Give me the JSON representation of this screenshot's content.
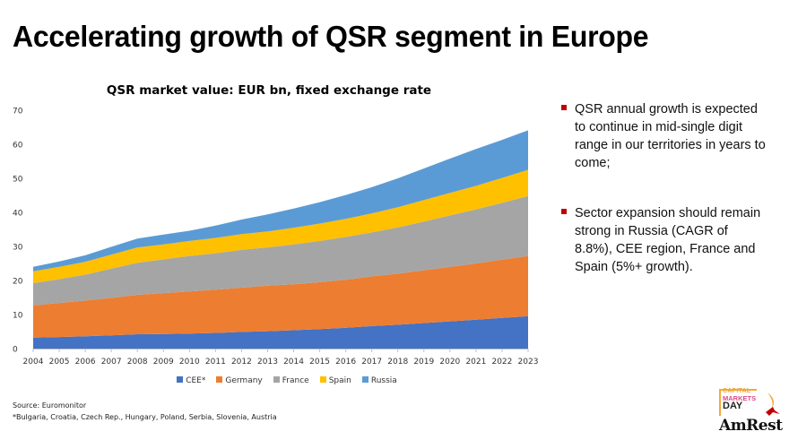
{
  "page": {
    "title": "Accelerating growth of QSR segment in Europe"
  },
  "chart_data": {
    "type": "area",
    "stacked": true,
    "title": "QSR market value: EUR bn, fixed exchange rate",
    "xlabel": "",
    "ylabel": "",
    "ylim": [
      0,
      70
    ],
    "yticks": [
      0,
      10,
      20,
      30,
      40,
      50,
      60,
      70
    ],
    "grid": false,
    "legend_position": "bottom",
    "x": [
      "2004",
      "2005",
      "2006",
      "2007",
      "2008",
      "2009",
      "2010",
      "2011",
      "2012",
      "2013",
      "2014",
      "2015",
      "2016",
      "2017",
      "2018",
      "2019",
      "2020",
      "2021",
      "2022",
      "2023"
    ],
    "series": [
      {
        "name": "CEE*",
        "color": "#4472c4",
        "values": [
          3.2,
          3.4,
          3.6,
          3.9,
          4.2,
          4.3,
          4.4,
          4.6,
          4.9,
          5.1,
          5.4,
          5.7,
          6.1,
          6.6,
          7.0,
          7.5,
          8.0,
          8.5,
          9.0,
          9.5
        ]
      },
      {
        "name": "Germany",
        "color": "#ed7d31",
        "values": [
          9.5,
          10.0,
          10.5,
          11.0,
          11.6,
          12.0,
          12.4,
          12.7,
          13.0,
          13.4,
          13.5,
          13.8,
          14.1,
          14.6,
          15.0,
          15.5,
          16.0,
          16.5,
          17.1,
          17.7
        ]
      },
      {
        "name": "France",
        "color": "#a5a5a5",
        "values": [
          6.5,
          7.0,
          7.6,
          8.6,
          9.4,
          9.9,
          10.4,
          10.7,
          11.1,
          11.2,
          11.7,
          12.1,
          12.6,
          12.9,
          13.6,
          14.3,
          15.1,
          15.9,
          16.7,
          17.6
        ]
      },
      {
        "name": "Spain",
        "color": "#ffc000",
        "values": [
          3.5,
          3.6,
          3.8,
          4.1,
          4.5,
          4.4,
          4.4,
          4.5,
          4.6,
          4.7,
          4.9,
          5.1,
          5.3,
          5.6,
          5.9,
          6.3,
          6.6,
          6.9,
          7.3,
          7.7
        ]
      },
      {
        "name": "Russia",
        "color": "#5b9bd5",
        "values": [
          1.3,
          1.6,
          1.9,
          2.3,
          2.6,
          2.9,
          3.0,
          3.6,
          4.3,
          5.0,
          5.6,
          6.3,
          7.0,
          7.7,
          8.5,
          9.3,
          10.1,
          10.8,
          11.2,
          11.6
        ]
      }
    ]
  },
  "footnotes": {
    "source": "Source: Euromonitor",
    "cee_definition": "*Bulgaria, Croatia, Czech Rep., Hungary, Poland, Serbia, Slovenia, Austria"
  },
  "bullets": [
    {
      "text": "QSR annual growth is expected to continue in mid-single digit range in our territories in years to come;"
    },
    {
      "text": "Sector expansion should remain strong in Russia (CAGR of 8.8%), CEE region, France and Spain (5%+ growth)."
    }
  ],
  "accent_color": "#c00000",
  "logo": {
    "event_line1": "CAPITAL",
    "event_line2": "MARKETS",
    "event_line3": "DAY",
    "brand": "AmRest"
  }
}
